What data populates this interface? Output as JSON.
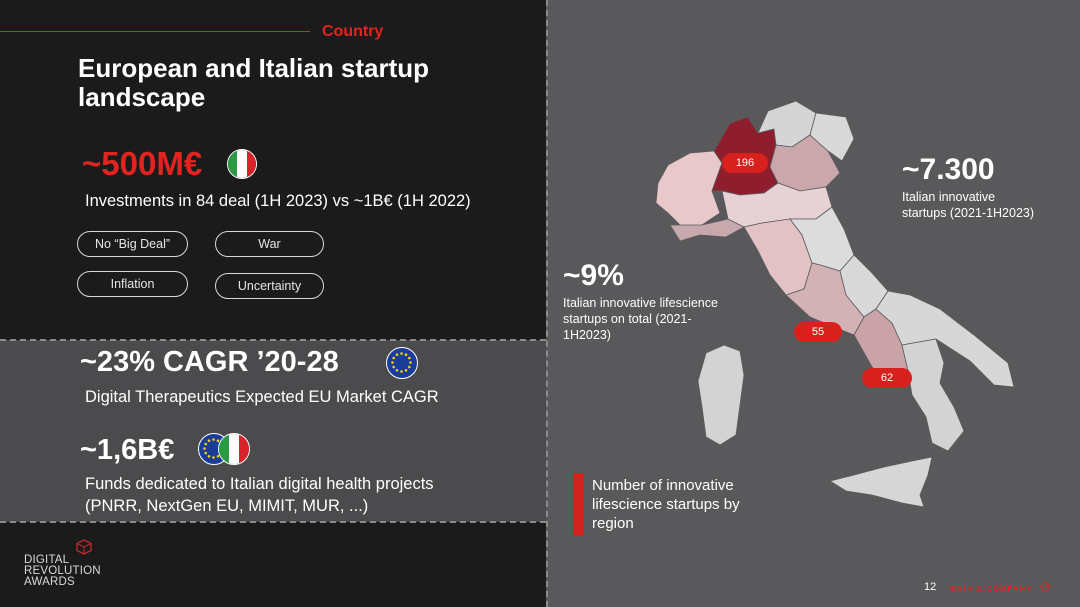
{
  "header": {
    "section_label": "Country",
    "title": "European and Italian startup landscape"
  },
  "investments": {
    "headline": "~500M€",
    "description": "Investments in 84 deal (1H 2023) vs ~1B€ (1H 2022)",
    "flag_icon": "italy-flag-icon",
    "factors": [
      "No “Big Deal”",
      "War",
      "Inflation",
      "Uncertainty"
    ]
  },
  "cagr": {
    "headline": "~23% CAGR ’20-28",
    "description": "Digital Therapeutics Expected EU Market CAGR",
    "flag_icon": "eu-flag-icon"
  },
  "funds": {
    "headline": "~1,6B€",
    "description_line1": "Funds dedicated to Italian digital health projects",
    "description_line2": "(PNRR, NextGen EU, MIMIT, MUR, ...)",
    "flag_icon": "eu-italy-flag-icon"
  },
  "map": {
    "stat1": {
      "value": "~7.300",
      "label_line1": "Italian innovative",
      "label_line2": "startups (2021-1H2023)"
    },
    "stat2": {
      "value": "~9%",
      "label_line1": "Italian innovative lifescience",
      "label_line2": "startups on total (2021-",
      "label_line3": "1H2023)"
    },
    "regions": [
      {
        "name": "Lombardia",
        "count": "196"
      },
      {
        "name": "Lazio",
        "count": "55"
      },
      {
        "name": "Campania",
        "count": "62"
      }
    ],
    "legend": "Number of innovative lifescience startups by region"
  },
  "footer": {
    "logo_line1": "DIGITAL",
    "logo_line2": "REVOLUTION",
    "logo_line3": "AWARDS",
    "page_number": "12",
    "brand": "BAIN & COMPANY"
  },
  "colors": {
    "accent_red": "#e22420",
    "dark_bg": "#1c1b1c",
    "mid_bg": "#4b4a4c",
    "map_bg": "#59595b"
  }
}
